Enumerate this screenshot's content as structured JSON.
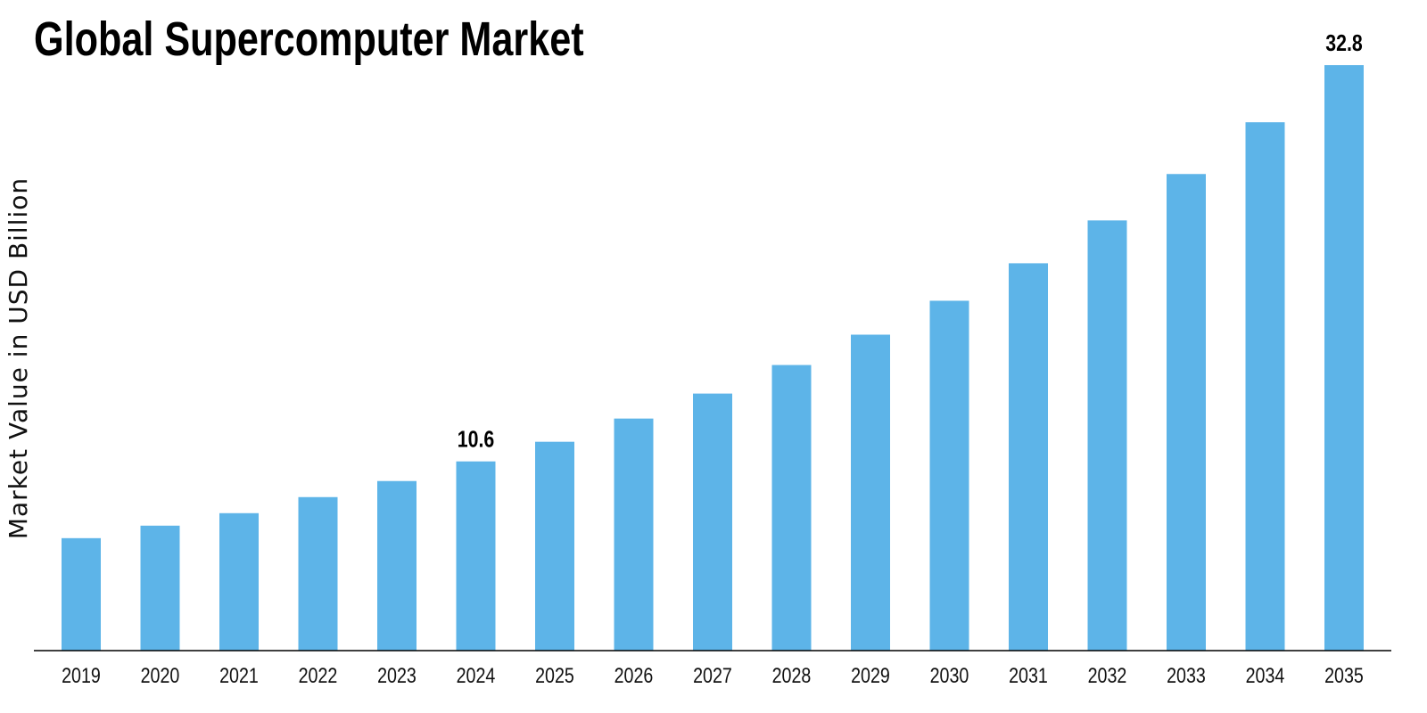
{
  "chart_data": {
    "type": "bar",
    "title": "Global Supercomputer Market",
    "xlabel": "",
    "ylabel": "Market Value in USD Billion",
    "categories": [
      "2019",
      "2020",
      "2021",
      "2022",
      "2023",
      "2024",
      "2025",
      "2026",
      "2027",
      "2028",
      "2029",
      "2030",
      "2031",
      "2032",
      "2033",
      "2034",
      "2035"
    ],
    "values": [
      6.3,
      7.0,
      7.7,
      8.6,
      9.5,
      10.6,
      11.7,
      13.0,
      14.4,
      16.0,
      17.7,
      19.6,
      21.7,
      24.1,
      26.7,
      29.6,
      32.8
    ],
    "data_labels": [
      {
        "category": "2024",
        "text": "10.6"
      },
      {
        "category": "2035",
        "text": "32.8"
      }
    ],
    "ylim": [
      0,
      36
    ],
    "grid": false,
    "legend": "none",
    "bar_color": "#5DB4E8",
    "axis_color": "#000000"
  }
}
